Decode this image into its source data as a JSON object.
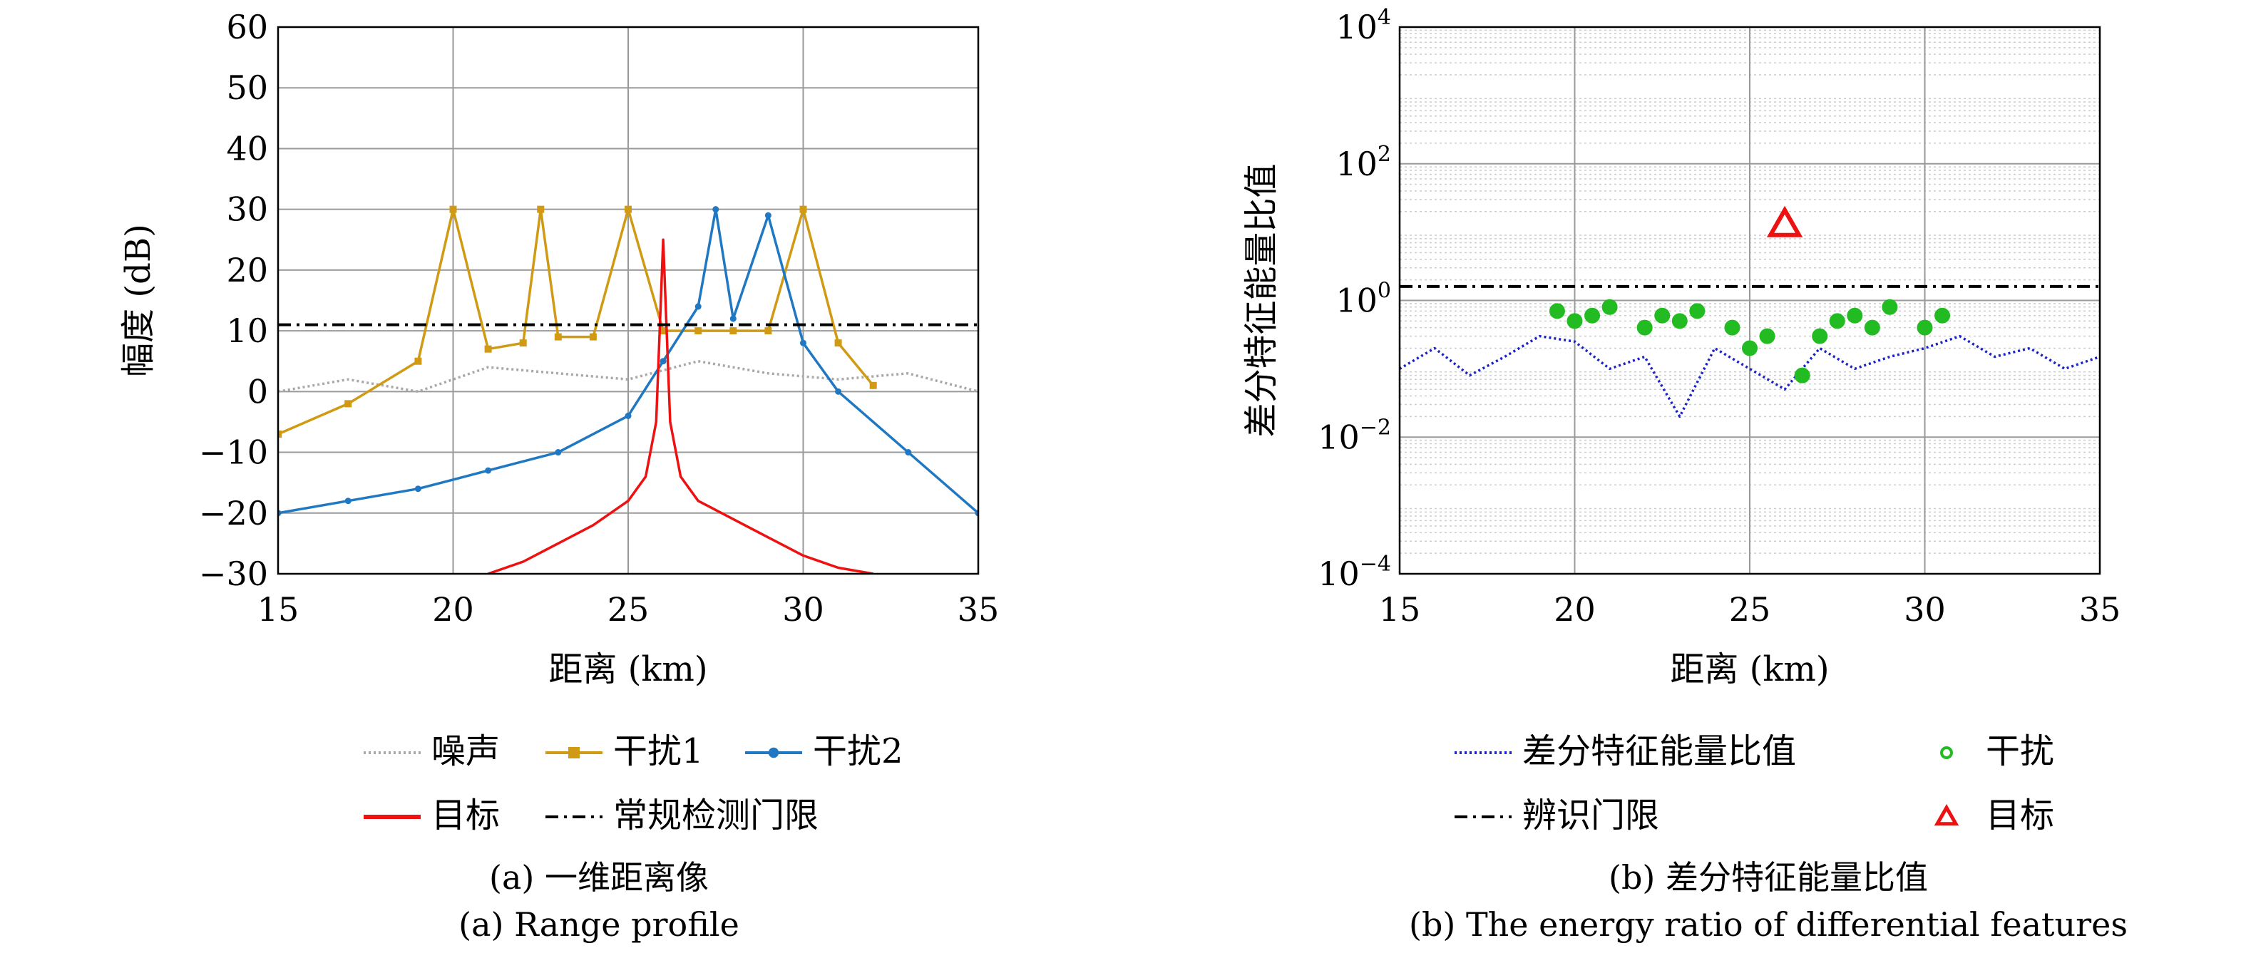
{
  "chart_data": [
    {
      "type": "line",
      "caption_cn": "(a) 一维距离像",
      "caption_en": "(a) Range profile",
      "xlabel": "距离 (km)",
      "ylabel": "幅度 (dB)",
      "xlim": [
        15,
        35
      ],
      "ylim": [
        -30,
        60
      ],
      "xticks": [
        15,
        20,
        25,
        30,
        35
      ],
      "yticks": [
        -30,
        -20,
        -10,
        0,
        10,
        20,
        30,
        40,
        50,
        60
      ],
      "grid": true,
      "legend_position": "below",
      "series": [
        {
          "name": "噪声",
          "color": "#a8a8a8",
          "style": "dotted",
          "x": [
            15,
            17,
            19,
            21,
            23,
            25,
            27,
            29,
            31,
            33,
            35
          ],
          "y": [
            0,
            2,
            0,
            4,
            3,
            2,
            5,
            3,
            2,
            3,
            0
          ]
        },
        {
          "name": "干扰1",
          "color": "#d09a14",
          "marker": "square",
          "x": [
            15,
            17,
            19,
            20,
            21,
            22,
            22.5,
            23,
            24,
            25,
            26,
            27,
            28,
            29,
            30,
            31,
            32
          ],
          "y": [
            -7,
            -2,
            5,
            30,
            7,
            8,
            30,
            9,
            9,
            30,
            10,
            10,
            10,
            10,
            30,
            8,
            1
          ]
        },
        {
          "name": "干扰2",
          "color": "#1f78c1",
          "marker": "dot",
          "x": [
            15,
            17,
            19,
            21,
            23,
            25,
            26,
            27,
            27.5,
            28,
            29,
            30,
            31,
            33,
            35
          ],
          "y": [
            -20,
            -18,
            -16,
            -13,
            -10,
            -4,
            5,
            14,
            30,
            12,
            29,
            8,
            0,
            -10,
            -20
          ]
        },
        {
          "name": "目标",
          "color": "#ee1111",
          "x": [
            21,
            22,
            23,
            24,
            25,
            25.5,
            25.8,
            26,
            26.2,
            26.5,
            27,
            28,
            29,
            30,
            31,
            32
          ],
          "y": [
            -30,
            -28,
            -25,
            -22,
            -18,
            -14,
            -5,
            25,
            -5,
            -14,
            -18,
            -21,
            -24,
            -27,
            -29,
            -30
          ]
        },
        {
          "name": "常规检测门限",
          "color": "#000000",
          "style": "dashdot",
          "x": [
            15,
            35
          ],
          "y": [
            11,
            11
          ]
        }
      ]
    },
    {
      "type": "line",
      "caption_cn": "(b) 差分特征能量比值",
      "caption_en": "(b) The energy ratio of differential features",
      "xlabel": "距离 (km)",
      "ylabel": "差分特征能量比值",
      "xlim": [
        15,
        35
      ],
      "ylim": [
        0.0001,
        10000
      ],
      "yscale": "log",
      "xticks": [
        15,
        20,
        25,
        30,
        35
      ],
      "yticks": [
        0.0001,
        0.01,
        1,
        100,
        10000
      ],
      "ytick_labels": [
        {
          "base": "10",
          "exp": "−4"
        },
        {
          "base": "10",
          "exp": "−2"
        },
        {
          "base": "10",
          "exp": "0"
        },
        {
          "base": "10",
          "exp": "2"
        },
        {
          "base": "10",
          "exp": "4"
        }
      ],
      "grid": true,
      "legend_position": "below",
      "series": [
        {
          "name": "差分特征能量比值",
          "color": "#1a22c8",
          "style": "dotted",
          "x": [
            15,
            16,
            17,
            18,
            19,
            20,
            21,
            22,
            23,
            24,
            25,
            26,
            27,
            28,
            29,
            30,
            31,
            32,
            33,
            34,
            35
          ],
          "y": [
            0.1,
            0.2,
            0.08,
            0.15,
            0.3,
            0.25,
            0.1,
            0.15,
            0.02,
            0.2,
            0.1,
            0.05,
            0.2,
            0.1,
            0.15,
            0.2,
            0.3,
            0.15,
            0.2,
            0.1,
            0.15
          ]
        },
        {
          "name": "干扰",
          "color": "#22bb22",
          "marker": "circle",
          "x": [
            19.5,
            20,
            20.5,
            21,
            22,
            22.5,
            23,
            23.5,
            24.5,
            25,
            25.5,
            26.5,
            27,
            27.5,
            28,
            28.5,
            29,
            30,
            30.5
          ],
          "y": [
            0.7,
            0.5,
            0.6,
            0.8,
            0.4,
            0.6,
            0.5,
            0.7,
            0.4,
            0.2,
            0.3,
            0.08,
            0.3,
            0.5,
            0.6,
            0.4,
            0.8,
            0.4,
            0.6
          ]
        },
        {
          "name": "目标",
          "color": "#ee1111",
          "marker": "triangle",
          "x": [
            26
          ],
          "y": [
            13
          ]
        },
        {
          "name": "辨识门限",
          "color": "#000000",
          "style": "dashdot",
          "x": [
            15,
            35
          ],
          "y": [
            1.6,
            1.6
          ]
        }
      ]
    }
  ]
}
